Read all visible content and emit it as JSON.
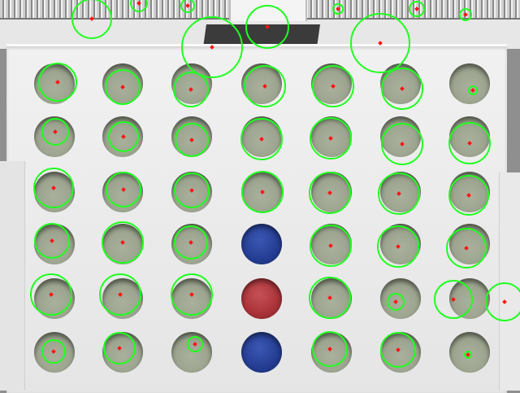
{
  "colors": {
    "detection": "#1fff1f",
    "center": "#ff1414",
    "hole": "#9ca48f",
    "red_disc": "#a83238",
    "blue_disc": "#243d92",
    "board": "#ececec"
  },
  "board": {
    "rows": [
      [
        {
          "state": "empty"
        },
        {
          "state": "empty"
        },
        {
          "state": "empty"
        },
        {
          "state": "empty"
        },
        {
          "state": "empty"
        },
        {
          "state": "empty"
        },
        {
          "state": "empty"
        }
      ],
      [
        {
          "state": "empty"
        },
        {
          "state": "empty"
        },
        {
          "state": "empty"
        },
        {
          "state": "empty"
        },
        {
          "state": "empty"
        },
        {
          "state": "empty"
        },
        {
          "state": "empty"
        }
      ],
      [
        {
          "state": "empty"
        },
        {
          "state": "empty"
        },
        {
          "state": "empty"
        },
        {
          "state": "empty"
        },
        {
          "state": "empty"
        },
        {
          "state": "empty"
        },
        {
          "state": "empty"
        }
      ],
      [
        {
          "state": "empty"
        },
        {
          "state": "empty"
        },
        {
          "state": "empty"
        },
        {
          "state": "blue"
        },
        {
          "state": "empty"
        },
        {
          "state": "empty"
        },
        {
          "state": "empty"
        }
      ],
      [
        {
          "state": "empty"
        },
        {
          "state": "empty"
        },
        {
          "state": "empty"
        },
        {
          "state": "red"
        },
        {
          "state": "empty"
        },
        {
          "state": "empty"
        },
        {
          "state": "empty"
        }
      ],
      [
        {
          "state": "empty"
        },
        {
          "state": "empty"
        },
        {
          "state": "empty"
        },
        {
          "state": "blue"
        },
        {
          "state": "empty"
        },
        {
          "state": "empty"
        },
        {
          "state": "empty"
        }
      ]
    ]
  }
}
